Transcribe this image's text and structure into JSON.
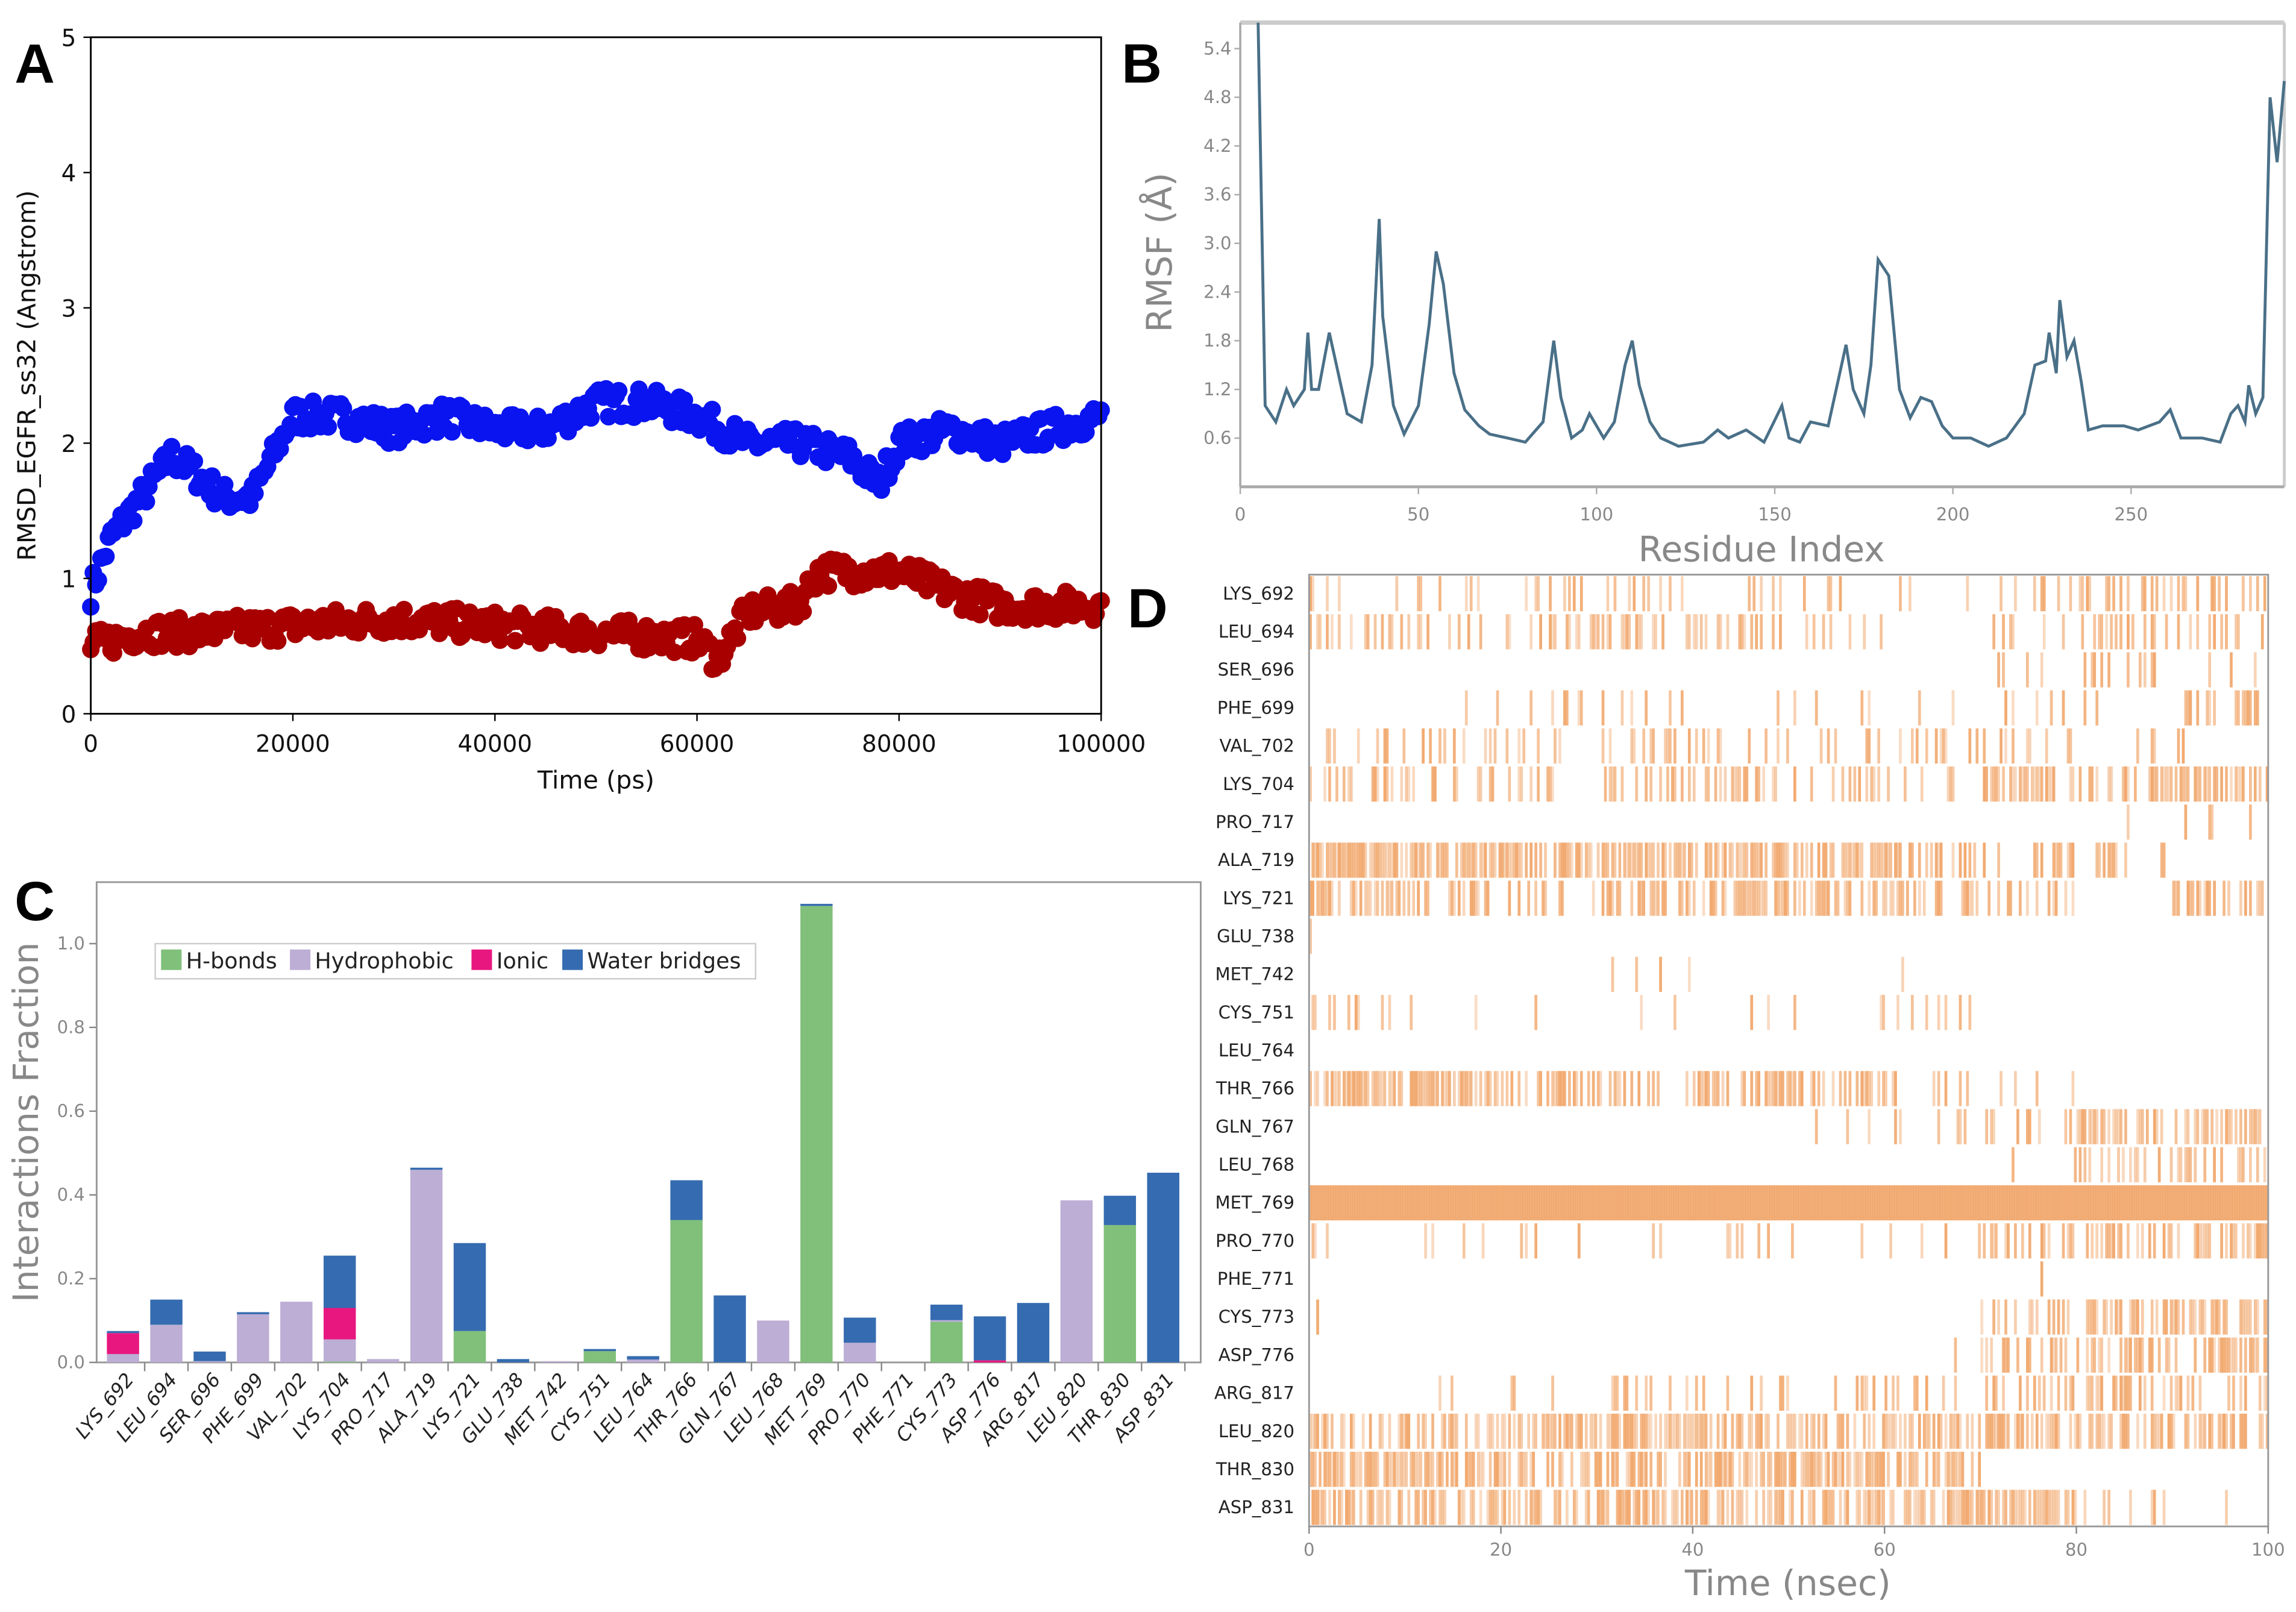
{
  "chart_data": [
    {
      "panel": "A",
      "type": "scatter",
      "xlabel": "Time (ps)",
      "ylabel": "RMSD_EGFR_ss32 (Angstrom)",
      "xlim": [
        0,
        100000
      ],
      "ylim": [
        0,
        5
      ],
      "xticks": [
        "0",
        "20000",
        "40000",
        "60000",
        "80000",
        "100000"
      ],
      "yticks": [
        "0",
        "1",
        "2",
        "3",
        "4",
        "5"
      ],
      "series": [
        {
          "name": "blue",
          "color": "#0a14f0",
          "x": [
            0,
            2000,
            5000,
            8000,
            10000,
            13000,
            16000,
            18000,
            20000,
            25000,
            30000,
            35000,
            40000,
            45000,
            50000,
            55000,
            60000,
            65000,
            70000,
            75000,
            78000,
            80000,
            85000,
            90000,
            95000,
            100000
          ],
          "y": [
            0.9,
            1.3,
            1.6,
            1.9,
            1.8,
            1.6,
            1.6,
            1.9,
            2.2,
            2.2,
            2.1,
            2.2,
            2.1,
            2.1,
            2.3,
            2.3,
            2.2,
            2.0,
            2.0,
            1.9,
            1.7,
            2.0,
            2.1,
            2.0,
            2.1,
            2.2
          ]
        },
        {
          "name": "red",
          "color": "#a80000",
          "x": [
            0,
            5000,
            10000,
            20000,
            30000,
            40000,
            50000,
            60000,
            62000,
            65000,
            70000,
            72000,
            80000,
            85000,
            90000,
            100000
          ],
          "y": [
            0.5,
            0.6,
            0.6,
            0.65,
            0.7,
            0.65,
            0.6,
            0.55,
            0.4,
            0.75,
            0.8,
            1.05,
            1.05,
            0.9,
            0.8,
            0.8
          ]
        }
      ]
    },
    {
      "panel": "B",
      "type": "line",
      "xlabel": "Residue Index",
      "ylabel": "RMSF (Å)",
      "xlim": [
        0,
        293
      ],
      "ylim": [
        0,
        5.72
      ],
      "xticks": [
        0,
        50,
        100,
        150,
        200,
        250
      ],
      "yticks": [
        "0.6",
        "1.2",
        "1.8",
        "2.4",
        "3.0",
        "3.6",
        "4.2",
        "4.8",
        "5.4"
      ],
      "color": "#4a7088",
      "x": [
        5,
        7,
        10,
        13,
        15,
        18,
        19,
        20,
        22,
        25,
        27,
        30,
        34,
        37,
        39,
        40,
        43,
        46,
        50,
        53,
        55,
        57,
        60,
        63,
        67,
        70,
        75,
        80,
        85,
        88,
        90,
        93,
        96,
        98,
        102,
        105,
        108,
        110,
        112,
        115,
        118,
        123,
        130,
        134,
        137,
        142,
        147,
        152,
        154,
        157,
        160,
        165,
        170,
        172,
        175,
        177,
        179,
        182,
        185,
        188,
        191,
        194,
        197,
        200,
        205,
        210,
        215,
        220,
        223,
        226,
        227,
        229,
        230,
        232,
        234,
        236,
        238,
        242,
        248,
        252,
        258,
        261,
        264,
        270,
        275,
        278,
        280,
        282,
        283,
        285,
        287,
        289,
        291,
        293
      ],
      "y": [
        5.72,
        1.0,
        0.8,
        1.2,
        1.0,
        1.2,
        1.9,
        1.2,
        1.2,
        1.9,
        1.5,
        0.9,
        0.8,
        1.5,
        3.3,
        2.1,
        1.0,
        0.65,
        1.0,
        2.0,
        2.9,
        2.5,
        1.4,
        0.95,
        0.75,
        0.65,
        0.6,
        0.55,
        0.8,
        1.8,
        1.1,
        0.6,
        0.7,
        0.9,
        0.6,
        0.8,
        1.5,
        1.8,
        1.25,
        0.8,
        0.6,
        0.5,
        0.55,
        0.7,
        0.6,
        0.7,
        0.55,
        1.0,
        0.6,
        0.55,
        0.8,
        0.75,
        1.75,
        1.2,
        0.9,
        1.5,
        2.8,
        2.6,
        1.2,
        0.85,
        1.1,
        1.05,
        0.75,
        0.6,
        0.6,
        0.5,
        0.6,
        0.9,
        1.5,
        1.55,
        1.9,
        1.4,
        2.3,
        1.6,
        1.8,
        1.3,
        0.7,
        0.75,
        0.75,
        0.7,
        0.8,
        0.95,
        0.6,
        0.6,
        0.55,
        0.9,
        1.0,
        0.8,
        1.25,
        0.9,
        1.1,
        4.8,
        4.0,
        5.0
      ]
    },
    {
      "panel": "C",
      "type": "bar",
      "stacked": true,
      "ylabel": "Interactions Fraction",
      "ylim": [
        0,
        1.15
      ],
      "yticks": [
        "0.0",
        "0.2",
        "0.4",
        "0.6",
        "0.8",
        "1.0"
      ],
      "legend_position": "top-left",
      "categories": [
        "LYS_692",
        "LEU_694",
        "SER_696",
        "PHE_699",
        "VAL_702",
        "LYS_704",
        "PRO_717",
        "ALA_719",
        "LYS_721",
        "GLU_738",
        "MET_742",
        "CYS_751",
        "LEU_764",
        "THR_766",
        "GLN_767",
        "LEU_768",
        "MET_769",
        "PRO_770",
        "PHE_771",
        "CYS_773",
        "ASP_776",
        "ARG_817",
        "LEU_820",
        "THR_830",
        "ASP_831"
      ],
      "series": [
        {
          "name": "H-bonds",
          "color": "#80c07a",
          "values": [
            0,
            0,
            0,
            0,
            0,
            0.002,
            0,
            0,
            0.075,
            0,
            0,
            0.027,
            0,
            0.34,
            0,
            0,
            1.09,
            0,
            0,
            0.097,
            0,
            0,
            0,
            0.328,
            0
          ]
        },
        {
          "name": "Hydrophobic",
          "color": "#bcaed4",
          "values": [
            0.02,
            0.09,
            0.003,
            0.115,
            0.145,
            0.053,
            0.008,
            0.46,
            0,
            0,
            0.003,
            0,
            0.007,
            0,
            0,
            0.1,
            0,
            0.047,
            0,
            0.004,
            0,
            0,
            0.387,
            0,
            0
          ]
        },
        {
          "name": "Ionic",
          "color": "#e8177f",
          "values": [
            0.05,
            0,
            0,
            0,
            0,
            0.075,
            0,
            0,
            0,
            0,
            0,
            0,
            0,
            0,
            0,
            0,
            0,
            0,
            0,
            0,
            0.005,
            0,
            0,
            0,
            0
          ]
        },
        {
          "name": "Water bridges",
          "color": "#356bb0",
          "values": [
            0.005,
            0.06,
            0.023,
            0.005,
            0,
            0.125,
            0,
            0.005,
            0.21,
            0.008,
            0,
            0.005,
            0.008,
            0.095,
            0.16,
            0,
            0.005,
            0.06,
            0,
            0.037,
            0.105,
            0.142,
            0,
            0.07,
            0.453
          ]
        }
      ]
    },
    {
      "panel": "D",
      "type": "heatmap",
      "xlabel": "Time (nsec)",
      "xlim": [
        0,
        100
      ],
      "xticks": [
        "0",
        "20",
        "40",
        "60",
        "80",
        "100"
      ],
      "color": "#f0a060",
      "bin_ns": 10,
      "rows": [
        "LYS_692",
        "LEU_694",
        "SER_696",
        "PHE_699",
        "VAL_702",
        "LYS_704",
        "PRO_717",
        "ALA_719",
        "LYS_721",
        "GLU_738",
        "MET_742",
        "CYS_751",
        "LEU_764",
        "THR_766",
        "GLN_767",
        "LEU_768",
        "MET_769",
        "PRO_770",
        "PHE_771",
        "CYS_773",
        "ASP_776",
        "ARG_817",
        "LEU_820",
        "THR_830",
        "ASP_831"
      ],
      "occupancy": [
        [
          0.1,
          0.05,
          0.1,
          0.15,
          0.1,
          0.05,
          0.05,
          0.2,
          0.4,
          0.3
        ],
        [
          0.3,
          0.2,
          0.3,
          0.4,
          0.3,
          0.2,
          0.15,
          0.2,
          0.3,
          0.3
        ],
        [
          0,
          0,
          0,
          0,
          0,
          0,
          0,
          0.05,
          0.4,
          0.05
        ],
        [
          0.05,
          0.05,
          0.1,
          0.2,
          0.1,
          0.1,
          0.1,
          0.2,
          0.1,
          0.6
        ],
        [
          0.3,
          0.3,
          0.2,
          0.2,
          0.2,
          0.2,
          0.2,
          0.2,
          0.1,
          0.05
        ],
        [
          0.4,
          0.3,
          0.2,
          0.3,
          0.2,
          0.3,
          0.2,
          0.5,
          0.5,
          0.6
        ],
        [
          0,
          0,
          0,
          0,
          0,
          0,
          0,
          0,
          0.05,
          0.1
        ],
        [
          0.9,
          0.8,
          0.6,
          0.7,
          0.7,
          0.6,
          0.4,
          0.3,
          0.2,
          0
        ],
        [
          0.5,
          0.4,
          0.4,
          0.5,
          0.6,
          0.5,
          0.5,
          0.3,
          0,
          0.5
        ],
        [
          0.05,
          0,
          0,
          0,
          0,
          0,
          0,
          0,
          0,
          0
        ],
        [
          0,
          0,
          0,
          0.02,
          0,
          0,
          0.02,
          0,
          0,
          0
        ],
        [
          0.2,
          0.1,
          0.05,
          0.05,
          0.1,
          0.1,
          0.1,
          0,
          0,
          0
        ],
        [
          0,
          0,
          0,
          0,
          0,
          0,
          0,
          0,
          0,
          0
        ],
        [
          0.8,
          0.7,
          0.6,
          0.5,
          0.6,
          0.5,
          0.3,
          0.1,
          0,
          0
        ],
        [
          0,
          0,
          0,
          0,
          0.05,
          0.05,
          0.05,
          0.2,
          0.6,
          0.7
        ],
        [
          0,
          0,
          0,
          0,
          0,
          0,
          0.02,
          0.1,
          0.3,
          0.4
        ],
        [
          1,
          1,
          1,
          1,
          1,
          1,
          1,
          1,
          1,
          1
        ],
        [
          0.1,
          0.1,
          0.1,
          0.1,
          0.1,
          0.1,
          0.1,
          0.3,
          0.4,
          0.5
        ],
        [
          0,
          0,
          0,
          0,
          0,
          0,
          0,
          0.02,
          0,
          0
        ],
        [
          0.02,
          0,
          0,
          0,
          0,
          0,
          0,
          0.4,
          0.5,
          0.6
        ],
        [
          0,
          0,
          0,
          0,
          0,
          0,
          0.05,
          0.3,
          0.5,
          0.5
        ],
        [
          0,
          0.05,
          0.1,
          0.3,
          0.3,
          0.2,
          0.2,
          0.3,
          0.4,
          0.3
        ],
        [
          0.6,
          0.5,
          0.6,
          0.7,
          0.6,
          0.6,
          0.6,
          0.6,
          0.5,
          0.5
        ],
        [
          0.8,
          0.7,
          0.4,
          0.5,
          0.7,
          0.8,
          0.6,
          0,
          0,
          0
        ],
        [
          0.6,
          0.5,
          0.6,
          0.7,
          0.6,
          0.6,
          0.7,
          0.8,
          0.3,
          0.02
        ]
      ]
    }
  ],
  "panels": {
    "a": "A",
    "b": "B",
    "c": "C",
    "d": "D"
  }
}
